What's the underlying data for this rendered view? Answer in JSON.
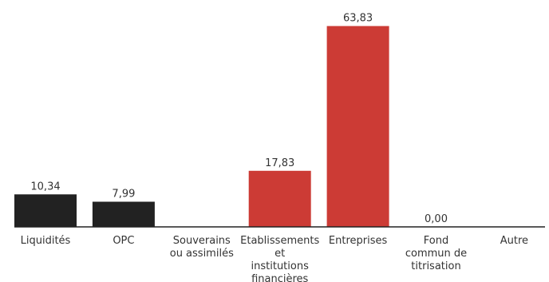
{
  "chart_data": {
    "type": "bar",
    "title": "",
    "xlabel": "",
    "ylabel": "",
    "ylim": [
      0,
      70
    ],
    "grid": false,
    "legend": "none",
    "categories": [
      [
        "Liquidités"
      ],
      [
        "OPC"
      ],
      [
        "Souverains",
        "ou assimilés"
      ],
      [
        "Etablissements",
        "et",
        "institutions",
        "financières"
      ],
      [
        "Entreprises"
      ],
      [
        "Fond",
        "commun de",
        "titrisation"
      ],
      [
        "Autre"
      ]
    ],
    "values": [
      10.34,
      7.99,
      null,
      17.83,
      63.83,
      0.0,
      null
    ],
    "value_labels": [
      "10,34",
      "7,99",
      "",
      "17,83",
      "63,83",
      "0,00",
      ""
    ],
    "bar_colors": [
      "#222222",
      "#222222",
      "#222222",
      "#cc3b35",
      "#cc3b35",
      "#cc3b35",
      "#cc3b35"
    ],
    "axis_color": "#222222"
  }
}
